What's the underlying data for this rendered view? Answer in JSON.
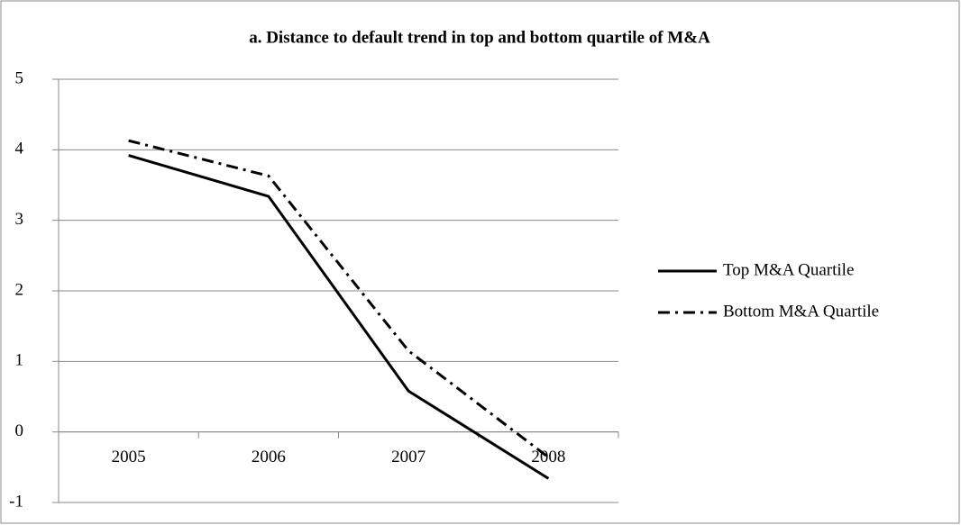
{
  "chart_data": {
    "type": "line",
    "title": "a. Distance to default trend in top and bottom quartile of M&A",
    "categories": [
      "2005",
      "2006",
      "2007",
      "2008"
    ],
    "series": [
      {
        "name": "Top M&A Quartile",
        "color": "#000000",
        "dash": "solid",
        "values": [
          3.92,
          3.34,
          0.58,
          -0.66
        ]
      },
      {
        "name": "Bottom M&A Quartile",
        "color": "#000000",
        "dash": "dash-dot",
        "values": [
          4.13,
          3.63,
          1.15,
          -0.36
        ]
      }
    ],
    "ylim": [
      -1,
      5
    ],
    "yticks": [
      -1,
      0,
      1,
      2,
      3,
      4,
      5
    ],
    "grid": true,
    "legend": "right"
  }
}
